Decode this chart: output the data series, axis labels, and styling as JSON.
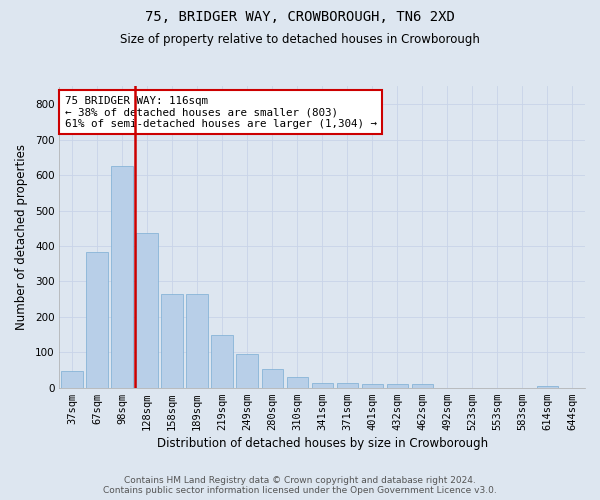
{
  "title": "75, BRIDGER WAY, CROWBOROUGH, TN6 2XD",
  "subtitle": "Size of property relative to detached houses in Crowborough",
  "xlabel": "Distribution of detached houses by size in Crowborough",
  "ylabel": "Number of detached properties",
  "categories": [
    "37sqm",
    "67sqm",
    "98sqm",
    "128sqm",
    "158sqm",
    "189sqm",
    "219sqm",
    "249sqm",
    "280sqm",
    "310sqm",
    "341sqm",
    "371sqm",
    "401sqm",
    "432sqm",
    "462sqm",
    "492sqm",
    "523sqm",
    "553sqm",
    "583sqm",
    "614sqm",
    "644sqm"
  ],
  "values": [
    47,
    382,
    625,
    437,
    265,
    265,
    150,
    95,
    53,
    29,
    14,
    12,
    10,
    10,
    10,
    0,
    0,
    0,
    0,
    5,
    0
  ],
  "bar_color": "#b8cfe8",
  "bar_edge_color": "#7aadd4",
  "vline_color": "#cc0000",
  "annotation_text": "75 BRIDGER WAY: 116sqm\n← 38% of detached houses are smaller (803)\n61% of semi-detached houses are larger (1,304) →",
  "annotation_box_facecolor": "#ffffff",
  "annotation_box_edgecolor": "#cc0000",
  "ylim": [
    0,
    850
  ],
  "yticks": [
    0,
    100,
    200,
    300,
    400,
    500,
    600,
    700,
    800
  ],
  "grid_color": "#c8d4e8",
  "background_color": "#dde6f0",
  "footer_line1": "Contains HM Land Registry data © Crown copyright and database right 2024.",
  "footer_line2": "Contains public sector information licensed under the Open Government Licence v3.0.",
  "title_fontsize": 10,
  "subtitle_fontsize": 8.5,
  "xlabel_fontsize": 8.5,
  "ylabel_fontsize": 8.5,
  "tick_fontsize": 7.5,
  "footer_fontsize": 6.5,
  "annotation_fontsize": 7.8
}
